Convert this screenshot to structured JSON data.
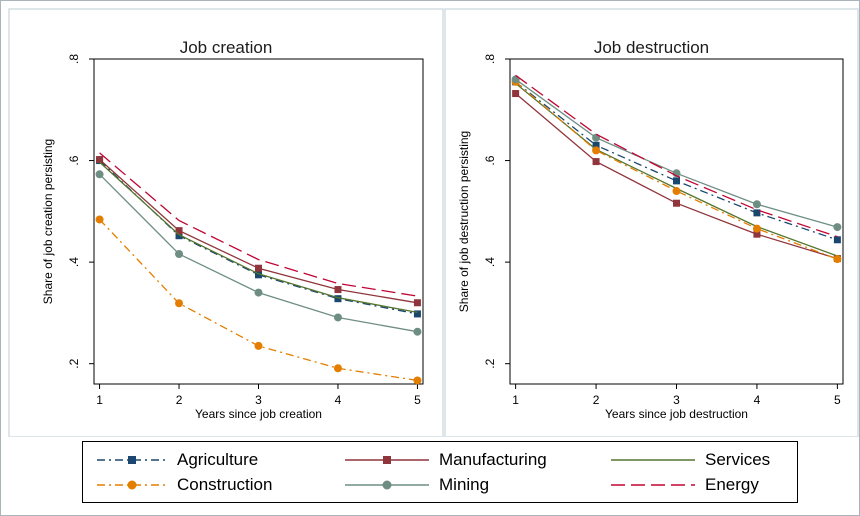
{
  "legend": [
    {
      "name": "Agriculture",
      "color": "#1a476f",
      "dash": "8,4,2,4",
      "marker": "square"
    },
    {
      "name": "Manufacturing",
      "color": "#90353b",
      "dash": "",
      "marker": "square"
    },
    {
      "name": "Services",
      "color": "#55752f",
      "dash": "",
      "marker": "none"
    },
    {
      "name": "Construction",
      "color": "#e37e00",
      "dash": "8,4,2,4",
      "marker": "circle"
    },
    {
      "name": "Mining",
      "color": "#6e8e84",
      "dash": "",
      "marker": "circle"
    },
    {
      "name": "Energy",
      "color": "#c10534",
      "dash": "14,6",
      "marker": "none"
    }
  ],
  "chart_data": [
    {
      "type": "line",
      "title": "Job creation",
      "xlabel": "Years since job creation",
      "ylabel": "Share of job creation persisting",
      "x": [
        1,
        2,
        3,
        4,
        5
      ],
      "xticks": [
        "1",
        "2",
        "3",
        "4",
        "5"
      ],
      "yticks": [
        {
          "v": 0.2,
          "label": ".2"
        },
        {
          "v": 0.4,
          "label": ".4"
        },
        {
          "v": 0.6,
          "label": ".6"
        },
        {
          "v": 0.8,
          "label": ".8"
        }
      ],
      "ylim": [
        0.16,
        0.8
      ],
      "series": [
        {
          "name": "Agriculture",
          "values": [
            0.6,
            0.452,
            0.375,
            0.328,
            0.298
          ]
        },
        {
          "name": "Manufacturing",
          "values": [
            0.602,
            0.462,
            0.388,
            0.346,
            0.32
          ]
        },
        {
          "name": "Services",
          "values": [
            0.597,
            0.454,
            0.377,
            0.33,
            0.301
          ]
        },
        {
          "name": "Construction",
          "values": [
            0.484,
            0.319,
            0.235,
            0.191,
            0.167
          ]
        },
        {
          "name": "Mining",
          "values": [
            0.573,
            0.416,
            0.34,
            0.291,
            0.263
          ]
        },
        {
          "name": "Energy",
          "values": [
            0.615,
            0.482,
            0.405,
            0.358,
            0.333
          ]
        }
      ]
    },
    {
      "type": "line",
      "title": "Job destruction",
      "xlabel": "Years since job destruction",
      "ylabel": "Share of job destruction persisting",
      "x": [
        1,
        2,
        3,
        4,
        5
      ],
      "xticks": [
        "1",
        "2",
        "3",
        "4",
        "5"
      ],
      "yticks": [
        {
          "v": 0.2,
          "label": ".2"
        },
        {
          "v": 0.4,
          "label": ".4"
        },
        {
          "v": 0.6,
          "label": ".6"
        },
        {
          "v": 0.8,
          "label": ".8"
        }
      ],
      "ylim": [
        0.16,
        0.8
      ],
      "series": [
        {
          "name": "Agriculture",
          "values": [
            0.755,
            0.63,
            0.56,
            0.497,
            0.444
          ]
        },
        {
          "name": "Manufacturing",
          "values": [
            0.732,
            0.598,
            0.516,
            0.455,
            0.407
          ]
        },
        {
          "name": "Services",
          "values": [
            0.752,
            0.622,
            0.545,
            0.47,
            0.412
          ]
        },
        {
          "name": "Construction",
          "values": [
            0.755,
            0.62,
            0.54,
            0.466,
            0.406
          ]
        },
        {
          "name": "Mining",
          "values": [
            0.76,
            0.645,
            0.575,
            0.514,
            0.469
          ]
        },
        {
          "name": "Energy",
          "values": [
            0.768,
            0.652,
            0.57,
            0.503,
            0.45
          ]
        }
      ]
    }
  ]
}
